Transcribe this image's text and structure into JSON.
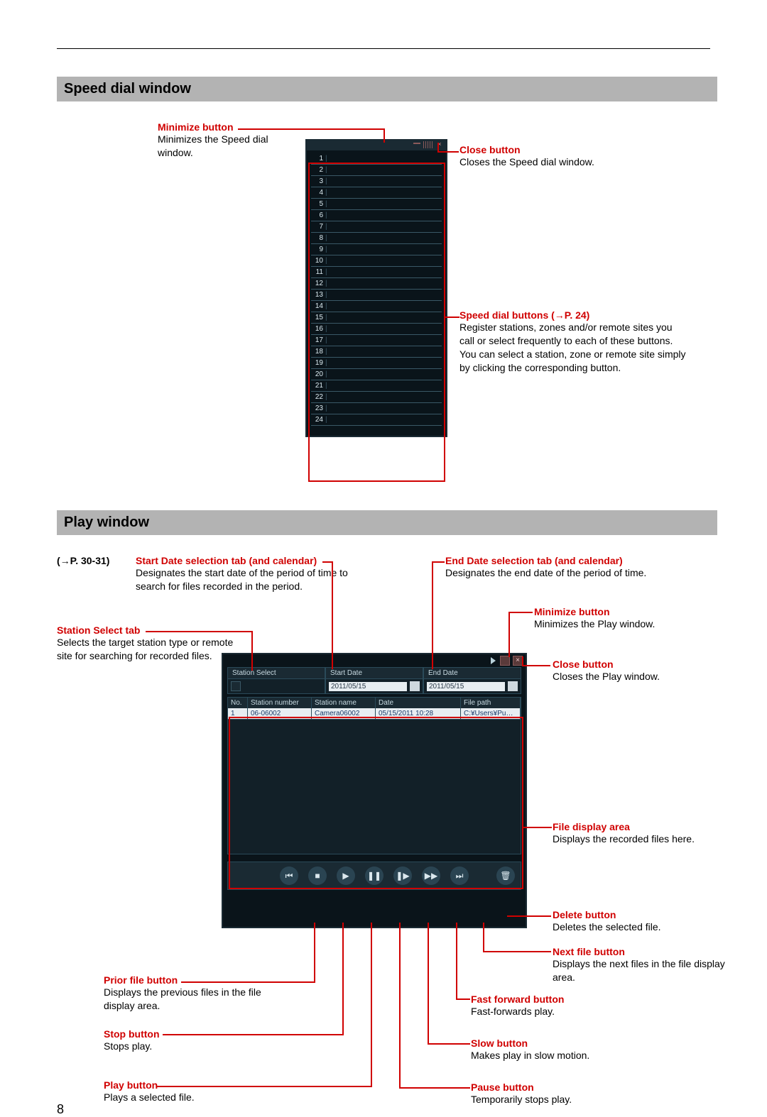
{
  "page_number": "8",
  "sections": {
    "speed_dial": {
      "title": "Speed dial window",
      "callouts": {
        "minimize": {
          "title": "Minimize button",
          "text": "Minimizes the Speed dial window."
        },
        "close": {
          "title": "Close button",
          "text": "Closes the Speed dial window."
        },
        "buttons": {
          "title": "Speed dial buttons (→P. 24)",
          "text": "Register stations, zones and/or remote sites you call or select frequently to each of these buttons. You can select a station, zone or remote site simply by clicking the corresponding button."
        }
      },
      "rows": [
        "1",
        "2",
        "3",
        "4",
        "5",
        "6",
        "7",
        "8",
        "9",
        "10",
        "11",
        "12",
        "13",
        "14",
        "15",
        "16",
        "17",
        "18",
        "19",
        "20",
        "21",
        "22",
        "23",
        "24"
      ]
    },
    "play": {
      "title": "Play window",
      "page_ref": "(→P. 30-31)",
      "callouts": {
        "start_date": {
          "title": "Start Date selection tab (and calendar)",
          "text": "Designates the start date of the period of time to search for files recorded in the period."
        },
        "end_date": {
          "title": "End Date selection tab (and calendar)",
          "text": "Designates the end date of the period of time."
        },
        "station_select": {
          "title": "Station Select tab",
          "text": "Selects the target station type or remote site for searching for recorded files."
        },
        "minimize": {
          "title": "Minimize button",
          "text": "Minimizes the Play window."
        },
        "close": {
          "title": "Close button",
          "text": "Closes the Play window."
        },
        "file_area": {
          "title": "File display area",
          "text": "Displays the recorded files here."
        },
        "delete": {
          "title": "Delete button",
          "text": "Deletes the selected file."
        },
        "next": {
          "title": "Next file button",
          "text": "Displays the next files in the file display area."
        },
        "prior": {
          "title": "Prior file button",
          "text": "Displays the previous files in the file display area."
        },
        "ff": {
          "title": "Fast forward button",
          "text": "Fast-forwards play."
        },
        "stop": {
          "title": "Stop button",
          "text": "Stops play."
        },
        "slow": {
          "title": "Slow button",
          "text": "Makes play in slow motion."
        },
        "playbtn": {
          "title": "Play button",
          "text": "Plays a selected file."
        },
        "pause": {
          "title": "Pause button",
          "text": "Temporarily stops play."
        }
      },
      "tabs": {
        "station_select": "Station Select",
        "start_date": "Start Date",
        "end_date": "End Date"
      },
      "dates": {
        "start": "2011/05/15",
        "end": "2011/05/15"
      },
      "table": {
        "headers": {
          "no": "No.",
          "snum": "Station number",
          "sname": "Station name",
          "date": "Date",
          "path": "File path"
        },
        "row": {
          "no": "1",
          "snum": "06-06002",
          "sname": "Camera06002",
          "date": "05/15/2011 10:28",
          "path": "C:¥Users¥Public¥D"
        }
      },
      "controls": {
        "prior": "⏮",
        "stop": "■",
        "play": "▶",
        "pause": "❚❚",
        "slow": "❚▶",
        "ff": "▶▶",
        "next": "⏭",
        "delete": "🗑"
      }
    }
  }
}
